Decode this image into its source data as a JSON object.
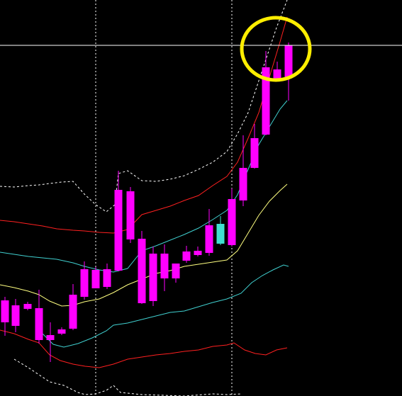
{
  "chart_data": {
    "type": "candlestick",
    "title": "",
    "xlabel": "",
    "ylabel": "",
    "grid": false,
    "background": "#000000",
    "colors": {
      "up": "#ff00ff",
      "down": "#40e0d0",
      "bollinger_outer": "#ffffff",
      "bollinger_mid": "#ff2020",
      "ma_cyan": "#40d0d0",
      "ma_yellow": "#ffff80",
      "crosshair": "#ffffff",
      "highlight": "#ffee00"
    },
    "ylim": [
      0,
      559
    ],
    "candles": [
      {
        "x": 7,
        "open": 104,
        "close": 135,
        "high": 140,
        "low": 85
      },
      {
        "x": 22,
        "open": 99,
        "close": 128,
        "high": 137,
        "low": 90
      },
      {
        "x": 39,
        "open": 123,
        "close": 130,
        "high": 133,
        "low": 121
      },
      {
        "x": 55,
        "open": 79,
        "close": 124,
        "high": 150,
        "low": 74
      },
      {
        "x": 71,
        "open": 79,
        "close": 86,
        "high": 104,
        "low": 48
      },
      {
        "x": 87,
        "open": 88,
        "close": 94,
        "high": 97,
        "low": 86
      },
      {
        "x": 103,
        "open": 95,
        "close": 143,
        "high": 158,
        "low": 93
      },
      {
        "x": 119,
        "open": 140,
        "close": 179,
        "high": 190,
        "low": 136
      },
      {
        "x": 135,
        "open": 152,
        "close": 178,
        "high": 182,
        "low": 152
      },
      {
        "x": 151,
        "open": 154,
        "close": 179,
        "high": 187,
        "low": 151
      },
      {
        "x": 167,
        "open": 177,
        "close": 291,
        "high": 318,
        "low": 176
      },
      {
        "x": 184,
        "open": 221,
        "close": 289,
        "high": 295,
        "low": 216
      },
      {
        "x": 200,
        "open": 131,
        "close": 222,
        "high": 233,
        "low": 130
      },
      {
        "x": 216,
        "open": 134,
        "close": 201,
        "high": 211,
        "low": 127
      },
      {
        "x": 232,
        "open": 166,
        "close": 201,
        "high": 214,
        "low": 148
      },
      {
        "x": 248,
        "open": 166,
        "close": 187,
        "high": 187,
        "low": 160
      },
      {
        "x": 263,
        "open": 191,
        "close": 204,
        "high": 212,
        "low": 188
      },
      {
        "x": 279,
        "open": 199,
        "close": 205,
        "high": 211,
        "low": 197
      },
      {
        "x": 295,
        "open": 202,
        "close": 241,
        "high": 264,
        "low": 198
      },
      {
        "x": 311,
        "open": 243,
        "close": 215,
        "high": 254,
        "low": 213
      },
      {
        "x": 327,
        "open": 213,
        "close": 278,
        "high": 293,
        "low": 211
      },
      {
        "x": 343,
        "open": 276,
        "close": 322,
        "high": 368,
        "low": 268
      },
      {
        "x": 359,
        "open": 322,
        "close": 364,
        "high": 384,
        "low": 321
      },
      {
        "x": 375,
        "open": 369,
        "close": 464,
        "high": 487,
        "low": 368
      },
      {
        "x": 391,
        "open": 446,
        "close": 461,
        "high": 472,
        "low": 444
      },
      {
        "x": 407,
        "open": 449,
        "close": 495,
        "high": 499,
        "low": 417
      }
    ],
    "lines": [
      {
        "name": "",
        "color": "#ffffff",
        "dash": "3,3",
        "points": [
          [
            0,
            296
          ],
          [
            20,
            295
          ],
          [
            40,
            297
          ],
          [
            55,
            298
          ],
          [
            70,
            300
          ],
          [
            87,
            302
          ],
          [
            103,
            303
          ],
          [
            119,
            285
          ],
          [
            135,
            270
          ],
          [
            150,
            260
          ],
          [
            162,
            270
          ],
          [
            167,
            314
          ],
          [
            180,
            318
          ],
          [
            200,
            304
          ],
          [
            220,
            303
          ],
          [
            240,
            306
          ],
          [
            260,
            311
          ],
          [
            280,
            320
          ],
          [
            300,
            330
          ],
          [
            320,
            345
          ],
          [
            335,
            370
          ],
          [
            350,
            400
          ],
          [
            370,
            460
          ],
          [
            390,
            520
          ],
          [
            405,
            559
          ]
        ]
      },
      {
        "name": "",
        "color": "#ff2020",
        "dash": "",
        "points": [
          [
            0,
            248
          ],
          [
            20,
            246
          ],
          [
            40,
            243
          ],
          [
            60,
            240
          ],
          [
            80,
            236
          ],
          [
            103,
            234
          ],
          [
            119,
            233
          ],
          [
            140,
            231
          ],
          [
            160,
            230
          ],
          [
            180,
            235
          ],
          [
            200,
            256
          ],
          [
            220,
            262
          ],
          [
            240,
            268
          ],
          [
            260,
            276
          ],
          [
            280,
            283
          ],
          [
            300,
            297
          ],
          [
            320,
            310
          ],
          [
            335,
            330
          ],
          [
            350,
            364
          ],
          [
            365,
            400
          ],
          [
            380,
            450
          ],
          [
            395,
            500
          ],
          [
            405,
            535
          ]
        ]
      },
      {
        "name": "",
        "color": "#40d0d0",
        "dash": "",
        "points": [
          [
            0,
            203
          ],
          [
            20,
            200
          ],
          [
            40,
            197
          ],
          [
            60,
            195
          ],
          [
            80,
            193
          ],
          [
            103,
            188
          ],
          [
            119,
            183
          ],
          [
            140,
            178
          ],
          [
            160,
            175
          ],
          [
            180,
            180
          ],
          [
            200,
            205
          ],
          [
            220,
            212
          ],
          [
            240,
            220
          ],
          [
            260,
            228
          ],
          [
            280,
            237
          ],
          [
            300,
            249
          ],
          [
            320,
            262
          ],
          [
            335,
            284
          ],
          [
            350,
            320
          ],
          [
            365,
            355
          ],
          [
            380,
            380
          ],
          [
            395,
            405
          ],
          [
            405,
            417
          ]
        ]
      },
      {
        "name": "",
        "color": "#ffff80",
        "dash": "",
        "points": [
          [
            0,
            157
          ],
          [
            20,
            153
          ],
          [
            40,
            148
          ],
          [
            55,
            143
          ],
          [
            70,
            134
          ],
          [
            87,
            127
          ],
          [
            103,
            128
          ],
          [
            119,
            133
          ],
          [
            140,
            137
          ],
          [
            160,
            146
          ],
          [
            180,
            157
          ],
          [
            200,
            165
          ],
          [
            220,
            173
          ],
          [
            240,
            177
          ],
          [
            260,
            183
          ],
          [
            280,
            186
          ],
          [
            300,
            189
          ],
          [
            320,
            192
          ],
          [
            335,
            205
          ],
          [
            350,
            230
          ],
          [
            365,
            255
          ],
          [
            380,
            275
          ],
          [
            395,
            290
          ],
          [
            405,
            299
          ]
        ]
      },
      {
        "name": "",
        "color": "#40d0d0",
        "dash": "",
        "points": [
          [
            60,
            88
          ],
          [
            75,
            73
          ],
          [
            90,
            69
          ],
          [
            110,
            74
          ],
          [
            130,
            82
          ],
          [
            150,
            92
          ],
          [
            160,
            100
          ],
          [
            180,
            103
          ],
          [
            200,
            108
          ],
          [
            220,
            113
          ],
          [
            240,
            118
          ],
          [
            260,
            120
          ],
          [
            280,
            126
          ],
          [
            300,
            132
          ],
          [
            320,
            137
          ],
          [
            340,
            145
          ],
          [
            355,
            160
          ],
          [
            370,
            170
          ],
          [
            385,
            178
          ],
          [
            400,
            185
          ],
          [
            407,
            183
          ]
        ]
      },
      {
        "name": "",
        "color": "#ff2020",
        "dash": "",
        "points": [
          [
            0,
            93
          ],
          [
            20,
            88
          ],
          [
            40,
            80
          ],
          [
            55,
            75
          ],
          [
            70,
            58
          ],
          [
            85,
            50
          ],
          [
            103,
            45
          ],
          [
            120,
            42
          ],
          [
            140,
            40
          ],
          [
            160,
            45
          ],
          [
            180,
            52
          ],
          [
            200,
            55
          ],
          [
            220,
            58
          ],
          [
            240,
            60
          ],
          [
            260,
            63
          ],
          [
            280,
            65
          ],
          [
            300,
            70
          ],
          [
            320,
            72
          ],
          [
            330,
            75
          ],
          [
            345,
            65
          ],
          [
            360,
            60
          ],
          [
            375,
            58
          ],
          [
            390,
            65
          ],
          [
            405,
            68
          ]
        ]
      },
      {
        "name": "",
        "color": "#ffffff",
        "dash": "3,3",
        "points": [
          [
            20,
            52
          ],
          [
            40,
            40
          ],
          [
            55,
            30
          ],
          [
            70,
            20
          ],
          [
            90,
            15
          ],
          [
            100,
            10
          ],
          [
            110,
            5
          ],
          [
            120,
            2
          ],
          [
            135,
            3
          ],
          [
            150,
            8
          ],
          [
            160,
            15
          ],
          [
            170,
            5
          ],
          [
            200,
            2
          ],
          [
            260,
            0
          ],
          [
            300,
            3
          ],
          [
            320,
            2
          ],
          [
            340,
            3
          ]
        ]
      }
    ],
    "vlines": [
      135,
      327
    ],
    "hline": 495,
    "highlight": {
      "cx": 389,
      "cy": 490,
      "rx": 48,
      "ry": 44
    }
  }
}
